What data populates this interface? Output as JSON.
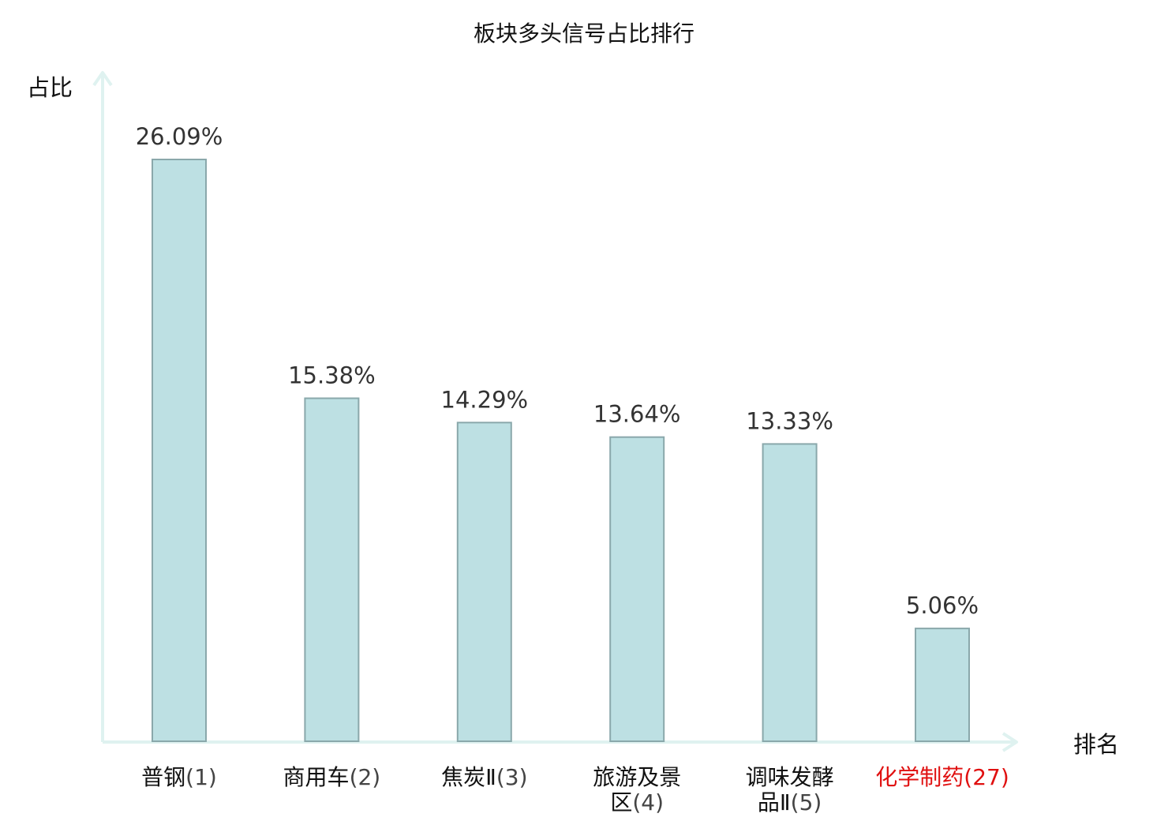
{
  "chart_data": {
    "type": "bar",
    "title": "板块多头信号占比排行",
    "ylabel": "占比",
    "xlabel": "排名",
    "ylim": [
      0,
      30
    ],
    "grid": false,
    "categories": [
      {
        "name": "普钢",
        "rank": "(1)",
        "lines": [
          {
            "name": "普钢",
            "rank": "(1)"
          }
        ],
        "highlight": false
      },
      {
        "name": "商用车",
        "rank": "(2)",
        "lines": [
          {
            "name": "商用车",
            "rank": "(2)"
          }
        ],
        "highlight": false
      },
      {
        "name": "焦炭Ⅱ",
        "rank": "(3)",
        "lines": [
          {
            "name": "焦炭Ⅱ",
            "rank": "(3)"
          }
        ],
        "highlight": false
      },
      {
        "name": "旅游及景区",
        "rank": "(4)",
        "lines": [
          {
            "name": "旅游及景",
            "rank": ""
          },
          {
            "name": "区",
            "rank": "(4)"
          }
        ],
        "highlight": false
      },
      {
        "name": "调味发酵品Ⅱ",
        "rank": "(5)",
        "lines": [
          {
            "name": "调味发酵",
            "rank": ""
          },
          {
            "name": "品Ⅱ",
            "rank": "(5)"
          }
        ],
        "highlight": false
      },
      {
        "name": "化学制药",
        "rank": "(27)",
        "lines": [
          {
            "name": "化学制药",
            "rank": "(27)"
          }
        ],
        "highlight": true
      }
    ],
    "values": [
      26.09,
      15.38,
      14.29,
      13.64,
      13.33,
      5.06
    ],
    "value_labels": [
      "26.09%",
      "15.38%",
      "14.29%",
      "13.64%",
      "13.33%",
      "5.06%"
    ],
    "colors": {
      "bar_fill": "#bde0e3",
      "bar_stroke": "#8aa8ab",
      "axis": "#dff2f0",
      "highlight": "#e01010"
    }
  }
}
